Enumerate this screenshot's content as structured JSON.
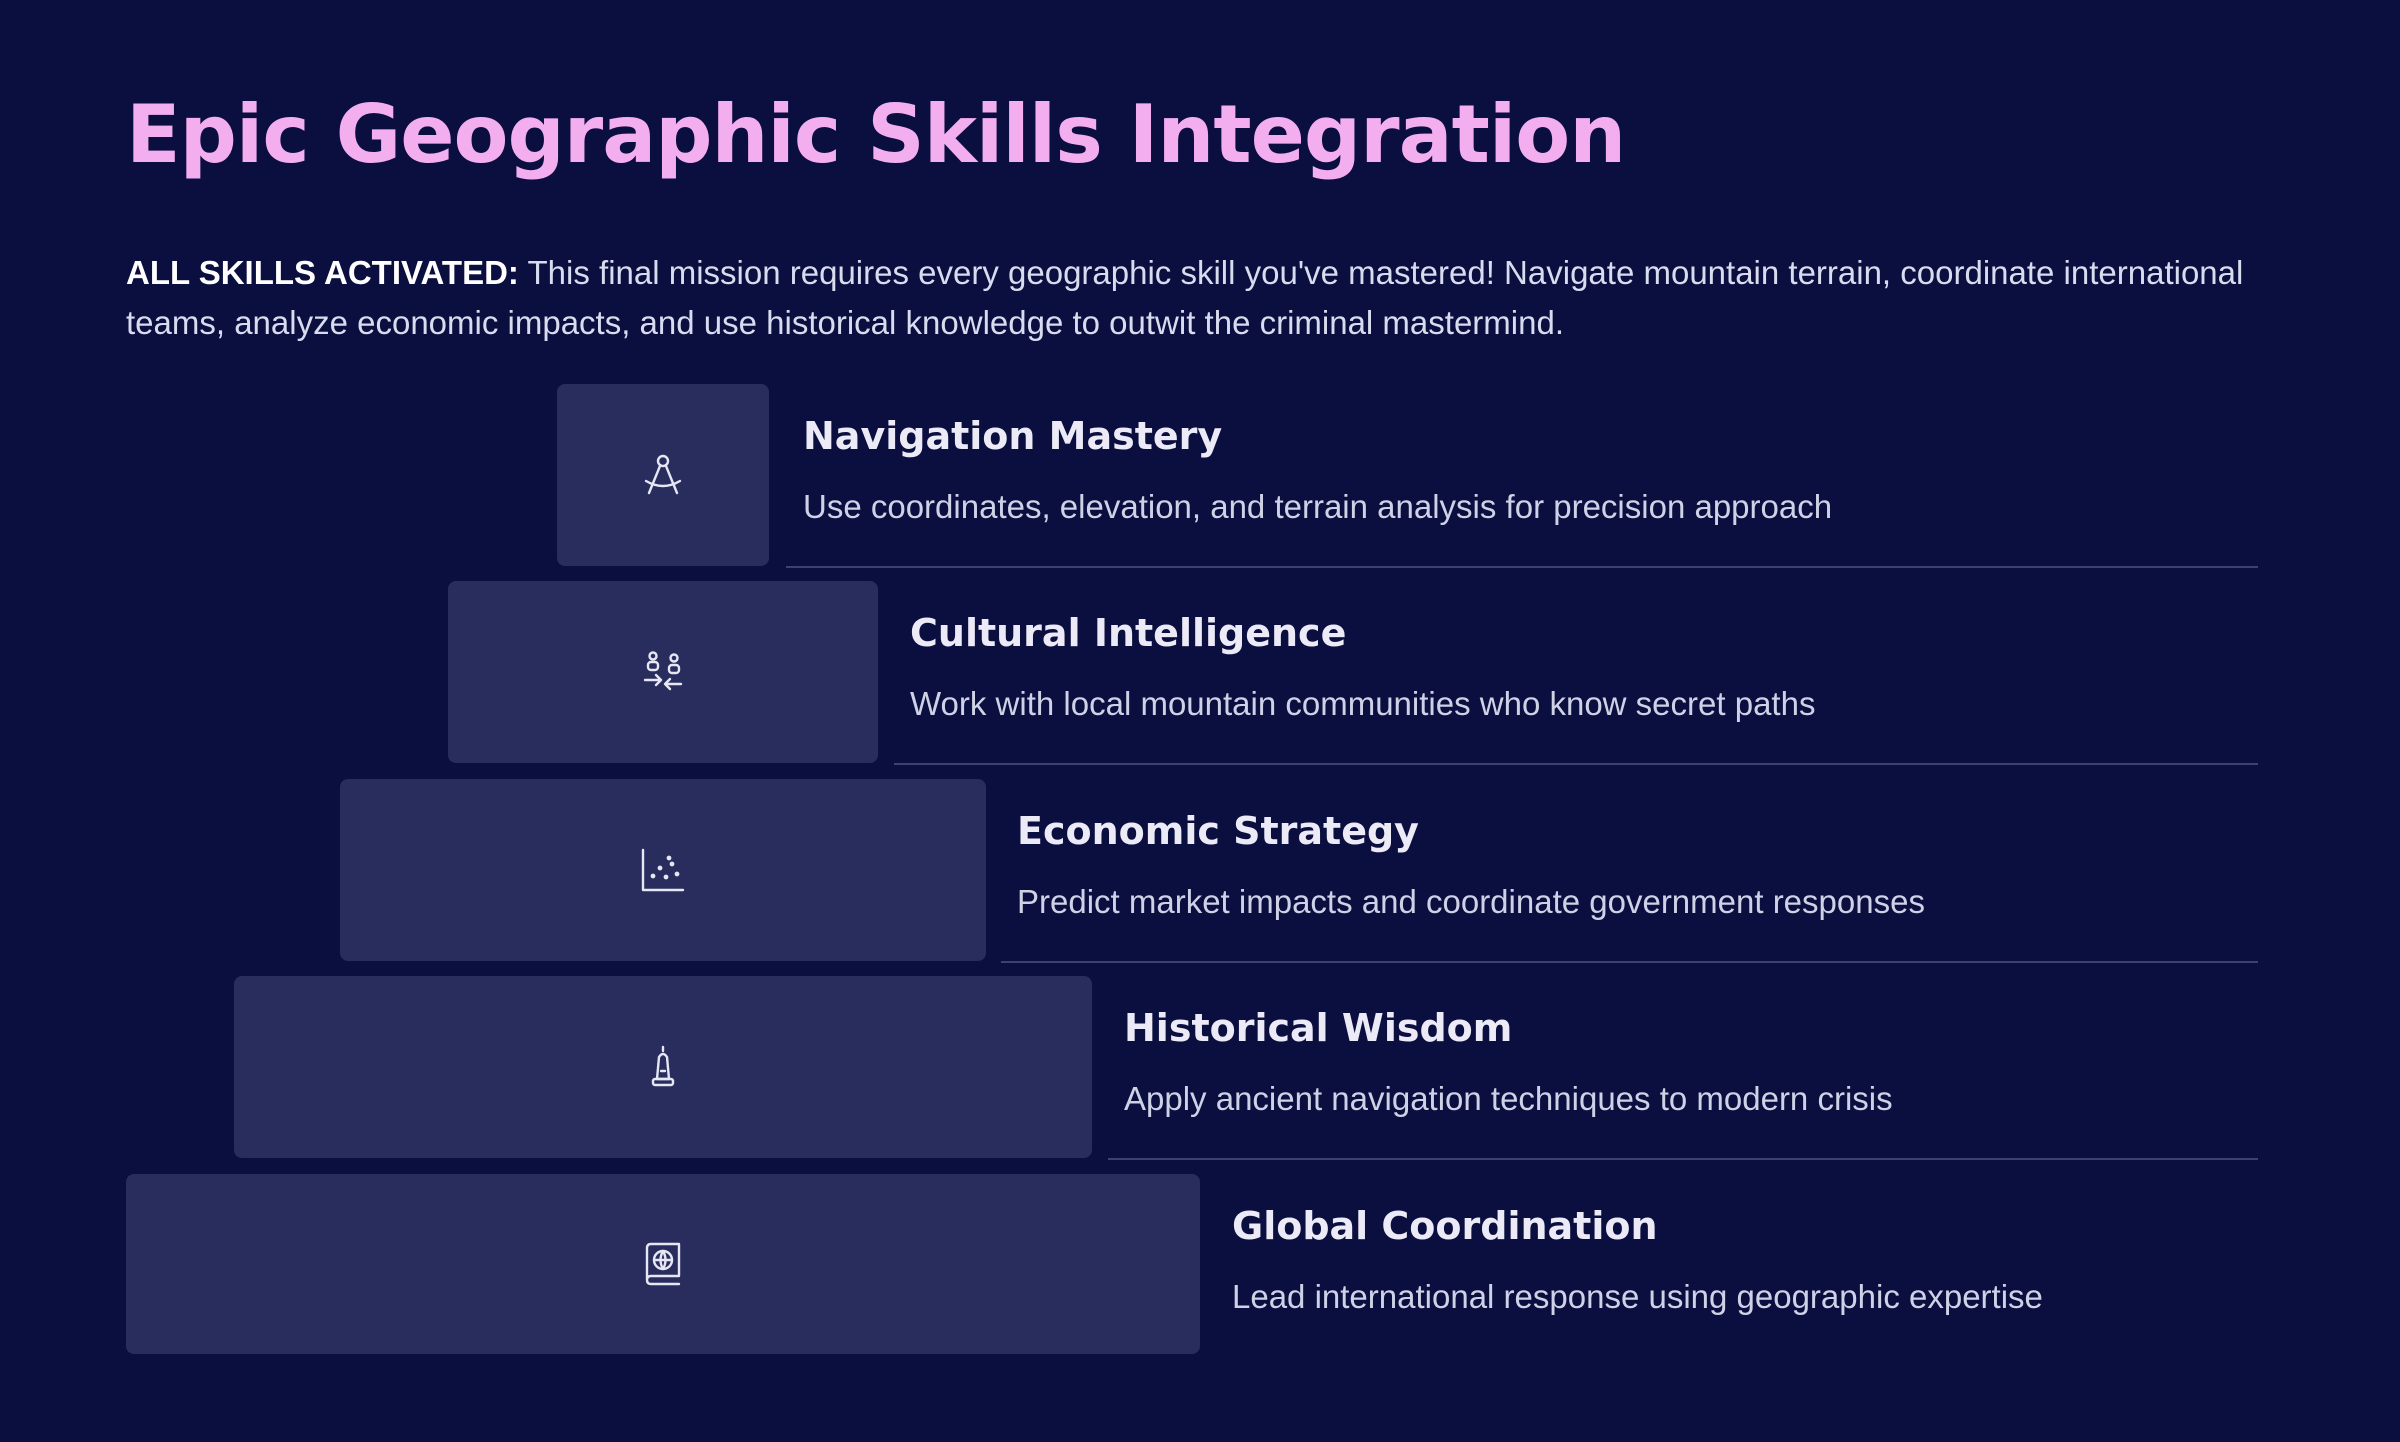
{
  "title": "Epic Geographic Skills Integration",
  "intro": {
    "lead": "ALL SKILLS ACTIVATED:",
    "text": "This final mission requires every geographic skill you've mastered! Navigate mountain terrain, coordinate international teams, analyze economic impacts, and use historical knowledge to outwit the criminal mastermind."
  },
  "levels": [
    {
      "heading": "Navigation Mastery",
      "description": "Use coordinates, elevation, and terrain analysis for precision approach",
      "icon": "compass-icon"
    },
    {
      "heading": "Cultural Intelligence",
      "description": "Work with local mountain communities who know secret paths",
      "icon": "people-exchange-icon"
    },
    {
      "heading": "Economic Strategy",
      "description": "Predict market impacts and coordinate government responses",
      "icon": "scatter-chart-icon"
    },
    {
      "heading": "Historical Wisdom",
      "description": "Apply ancient navigation techniques to modern crisis",
      "icon": "monument-icon"
    },
    {
      "heading": "Global Coordination",
      "description": "Lead international response using geographic expertise",
      "icon": "globe-book-icon"
    }
  ],
  "colors": {
    "background": "#0b0f3f",
    "title": "#f3aef0",
    "block": "#292d5e",
    "divider": "#3d4170",
    "text": "#d9dcee"
  }
}
